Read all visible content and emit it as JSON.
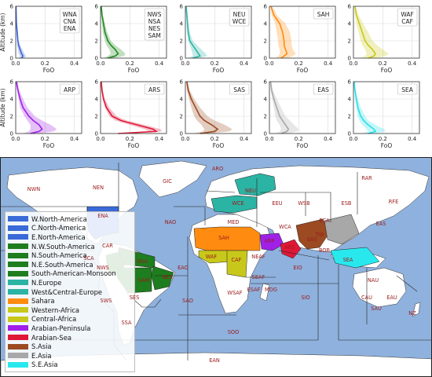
{
  "chart_data": [
    {
      "type": "area",
      "legend": [
        "WNA",
        "CNA",
        "ENA"
      ],
      "color": "#3a63d8",
      "xlabel": "FoO",
      "ylabel": "Altitude (km)",
      "xlim": [
        0,
        0.45
      ],
      "ylim": [
        0,
        6
      ],
      "xticks": [
        "0.0",
        "0.2",
        "0.4"
      ],
      "yticks": [
        "0",
        "2",
        "4",
        "6"
      ],
      "series": {
        "altitude": [
          0,
          0.25,
          0.5,
          1,
          1.5,
          2,
          3,
          4,
          5,
          6
        ],
        "mean": [
          0.04,
          0.05,
          0.04,
          0.03,
          0.02,
          0.015,
          0.01,
          0.005,
          0.003,
          0.002
        ],
        "lower": [
          0.02,
          0.03,
          0.02,
          0.015,
          0.01,
          0.008,
          0.005,
          0.002,
          0.001,
          0.001
        ],
        "upper": [
          0.06,
          0.07,
          0.06,
          0.045,
          0.03,
          0.02,
          0.015,
          0.008,
          0.005,
          0.003
        ]
      }
    },
    {
      "type": "area",
      "legend": [
        "NWS",
        "NSA",
        "NES",
        "SAM"
      ],
      "color": "#1f8a1f",
      "xlabel": "FoO",
      "ylabel": "",
      "xlim": [
        0,
        0.45
      ],
      "ylim": [
        0,
        6
      ],
      "xticks": [
        "0.0",
        "0.2",
        "0.4"
      ],
      "yticks": [
        "0",
        "2",
        "4",
        "6"
      ],
      "series": {
        "altitude": [
          0,
          0.25,
          0.5,
          1,
          1.5,
          2,
          3,
          4,
          5,
          6
        ],
        "mean": [
          0.05,
          0.1,
          0.12,
          0.1,
          0.07,
          0.05,
          0.03,
          0.02,
          0.01,
          0.005
        ],
        "lower": [
          0.02,
          0.05,
          0.07,
          0.06,
          0.04,
          0.03,
          0.015,
          0.01,
          0.005,
          0.002
        ],
        "upper": [
          0.09,
          0.16,
          0.17,
          0.14,
          0.1,
          0.07,
          0.045,
          0.03,
          0.015,
          0.008
        ]
      }
    },
    {
      "type": "area",
      "legend": [
        "NEU",
        "WCE"
      ],
      "color": "#2bb5a5",
      "xlabel": "FoO",
      "ylabel": "",
      "xlim": [
        0,
        0.45
      ],
      "ylim": [
        0,
        6
      ],
      "xticks": [
        "0.0",
        "0.2",
        "0.4"
      ],
      "yticks": [
        "0",
        "2",
        "4",
        "6"
      ],
      "series": {
        "altitude": [
          0,
          0.25,
          0.5,
          1,
          1.5,
          2,
          3,
          4,
          5,
          6
        ],
        "mean": [
          0.05,
          0.1,
          0.09,
          0.07,
          0.05,
          0.03,
          0.02,
          0.015,
          0.01,
          0.005
        ],
        "lower": [
          0.02,
          0.05,
          0.05,
          0.04,
          0.03,
          0.02,
          0.01,
          0.008,
          0.005,
          0.002
        ],
        "upper": [
          0.09,
          0.15,
          0.14,
          0.11,
          0.08,
          0.05,
          0.03,
          0.02,
          0.015,
          0.008
        ]
      }
    },
    {
      "type": "area",
      "legend": [
        "SAH"
      ],
      "color": "#ff8c10",
      "xlabel": "FoO",
      "ylabel": "",
      "xlim": [
        0,
        0.45
      ],
      "ylim": [
        0,
        6
      ],
      "xticks": [
        "0.0",
        "0.2",
        "0.4"
      ],
      "yticks": [
        "0",
        "2",
        "4",
        "6"
      ],
      "series": {
        "altitude": [
          0,
          0.25,
          0.5,
          1,
          1.5,
          2,
          3,
          4,
          5,
          6
        ],
        "mean": [
          0.08,
          0.1,
          0.12,
          0.11,
          0.1,
          0.1,
          0.09,
          0.07,
          0.03,
          0.01
        ],
        "lower": [
          0.04,
          0.06,
          0.07,
          0.07,
          0.06,
          0.06,
          0.05,
          0.04,
          0.015,
          0.005
        ],
        "upper": [
          0.13,
          0.16,
          0.18,
          0.16,
          0.15,
          0.15,
          0.14,
          0.11,
          0.05,
          0.02
        ]
      }
    },
    {
      "type": "area",
      "legend": [
        "WAF",
        "CAF"
      ],
      "color": "#c8c81a",
      "xlabel": "FoO",
      "ylabel": "",
      "xlim": [
        0,
        0.45
      ],
      "ylim": [
        0,
        6
      ],
      "xticks": [
        "0.0",
        "0.2",
        "0.4"
      ],
      "yticks": [
        "0",
        "2",
        "4",
        "6"
      ],
      "series": {
        "altitude": [
          0,
          0.25,
          0.5,
          1,
          1.5,
          2,
          3,
          4,
          5,
          6
        ],
        "mean": [
          0.1,
          0.14,
          0.15,
          0.13,
          0.1,
          0.08,
          0.06,
          0.04,
          0.02,
          0.01
        ],
        "lower": [
          0.05,
          0.08,
          0.09,
          0.08,
          0.06,
          0.05,
          0.035,
          0.02,
          0.01,
          0.005
        ],
        "upper": [
          0.16,
          0.22,
          0.24,
          0.2,
          0.16,
          0.13,
          0.1,
          0.065,
          0.035,
          0.015
        ]
      }
    },
    {
      "type": "area",
      "legend": [
        "ARP"
      ],
      "color": "#a020e8",
      "xlabel": "FoO",
      "ylabel": "Altitude (km)",
      "xlim": [
        0,
        0.45
      ],
      "ylim": [
        0,
        6
      ],
      "xticks": [
        "0.0",
        "0.2",
        "0.4"
      ],
      "yticks": [
        "0",
        "2",
        "4",
        "6"
      ],
      "series": {
        "altitude": [
          0,
          0.25,
          0.5,
          1,
          1.5,
          2,
          3,
          4,
          5,
          6
        ],
        "mean": [
          0.1,
          0.16,
          0.18,
          0.16,
          0.12,
          0.09,
          0.05,
          0.03,
          0.015,
          0.005
        ],
        "lower": [
          0.05,
          0.09,
          0.1,
          0.1,
          0.08,
          0.06,
          0.03,
          0.02,
          0.01,
          0.003
        ],
        "upper": [
          0.16,
          0.26,
          0.28,
          0.24,
          0.18,
          0.13,
          0.08,
          0.05,
          0.025,
          0.01
        ]
      }
    },
    {
      "type": "area",
      "legend": [
        "ARS"
      ],
      "color": "#e01838",
      "xlabel": "FoO",
      "ylabel": "",
      "xlim": [
        0,
        0.45
      ],
      "ylim": [
        0,
        6
      ],
      "xticks": [
        "0.0",
        "0.2",
        "0.4"
      ],
      "yticks": [
        "0",
        "2",
        "4",
        "6"
      ],
      "series": {
        "altitude": [
          0,
          0.25,
          0.5,
          1,
          1.5,
          2,
          3,
          4,
          5,
          6
        ],
        "mean": [
          0.12,
          0.38,
          0.36,
          0.25,
          0.14,
          0.08,
          0.04,
          0.02,
          0.01,
          0.005
        ],
        "lower": [
          0.1,
          0.33,
          0.3,
          0.2,
          0.1,
          0.06,
          0.03,
          0.015,
          0.005,
          0.002
        ],
        "upper": [
          0.15,
          0.42,
          0.41,
          0.3,
          0.18,
          0.11,
          0.06,
          0.03,
          0.015,
          0.008
        ]
      }
    },
    {
      "type": "area",
      "legend": [
        "SAS"
      ],
      "color": "#9b4a22",
      "xlabel": "FoO",
      "ylabel": "",
      "xlim": [
        0,
        0.45
      ],
      "ylim": [
        0,
        6
      ],
      "xticks": [
        "0.0",
        "0.2",
        "0.4"
      ],
      "yticks": [
        "0",
        "2",
        "4",
        "6"
      ],
      "series": {
        "altitude": [
          0,
          0.25,
          0.5,
          1,
          1.5,
          2,
          3,
          4,
          5,
          6
        ],
        "mean": [
          0.1,
          0.2,
          0.22,
          0.18,
          0.13,
          0.1,
          0.07,
          0.04,
          0.02,
          0.01
        ],
        "lower": [
          0.05,
          0.12,
          0.13,
          0.11,
          0.08,
          0.06,
          0.04,
          0.025,
          0.01,
          0.005
        ],
        "upper": [
          0.17,
          0.3,
          0.32,
          0.27,
          0.2,
          0.15,
          0.1,
          0.06,
          0.03,
          0.015
        ]
      }
    },
    {
      "type": "area",
      "legend": [
        "EAS"
      ],
      "color": "#a8a8a8",
      "xlabel": "FoO",
      "ylabel": "",
      "xlim": [
        0,
        0.45
      ],
      "ylim": [
        0,
        6
      ],
      "xticks": [
        "0.0",
        "0.2",
        "0.4"
      ],
      "yticks": [
        "0",
        "2",
        "4",
        "6"
      ],
      "series": {
        "altitude": [
          0,
          0.25,
          0.5,
          1,
          1.5,
          2,
          3,
          4,
          5,
          6
        ],
        "mean": [
          0.08,
          0.12,
          0.13,
          0.11,
          0.09,
          0.07,
          0.05,
          0.03,
          0.015,
          0.008
        ],
        "lower": [
          0.04,
          0.07,
          0.08,
          0.07,
          0.05,
          0.04,
          0.03,
          0.02,
          0.008,
          0.004
        ],
        "upper": [
          0.13,
          0.19,
          0.2,
          0.17,
          0.14,
          0.11,
          0.08,
          0.05,
          0.025,
          0.012
        ]
      }
    },
    {
      "type": "area",
      "legend": [
        "SEA"
      ],
      "color": "#28e0e8",
      "xlabel": "FoO",
      "ylabel": "",
      "xlim": [
        0,
        0.45
      ],
      "ylim": [
        0,
        6
      ],
      "xticks": [
        "0.0",
        "0.2",
        "0.4"
      ],
      "yticks": [
        "0",
        "2",
        "4",
        "6"
      ],
      "series": {
        "altitude": [
          0,
          0.25,
          0.5,
          1,
          1.5,
          2,
          3,
          4,
          5,
          6
        ],
        "mean": [
          0.1,
          0.15,
          0.14,
          0.1,
          0.07,
          0.05,
          0.03,
          0.02,
          0.01,
          0.005
        ],
        "lower": [
          0.06,
          0.1,
          0.09,
          0.06,
          0.04,
          0.03,
          0.02,
          0.01,
          0.005,
          0.002
        ],
        "upper": [
          0.15,
          0.22,
          0.21,
          0.15,
          0.1,
          0.08,
          0.05,
          0.03,
          0.015,
          0.008
        ]
      }
    }
  ],
  "map": {
    "ocean_color": "#8fb1dd",
    "land_color": "#ffffff",
    "legend": [
      {
        "label": "W.North-America",
        "color": "#3a6ad8"
      },
      {
        "label": "C.North-America",
        "color": "#3a6ad8"
      },
      {
        "label": "E.North-America",
        "color": "#3a6ad8"
      },
      {
        "label": "N.W.South-America",
        "color": "#1e7d1e"
      },
      {
        "label": "N.South-America",
        "color": "#1e7d1e"
      },
      {
        "label": "N.E.South-America",
        "color": "#1e7d1e"
      },
      {
        "label": "South-American-Monsoon",
        "color": "#1e7d1e"
      },
      {
        "label": "N.Europe",
        "color": "#2bb3a3"
      },
      {
        "label": "West&Central-Europe",
        "color": "#2bb3a3"
      },
      {
        "label": "Sahara",
        "color": "#ff8c10"
      },
      {
        "label": "Western-Africa",
        "color": "#c8c81a"
      },
      {
        "label": "Central-Africa",
        "color": "#c8c81a"
      },
      {
        "label": "Arabian-Peninsula",
        "color": "#a020e8"
      },
      {
        "label": "Arabian-Sea",
        "color": "#e01838"
      },
      {
        "label": "S.Asia",
        "color": "#9b4a22"
      },
      {
        "label": "E.Asia",
        "color": "#a8a8a8"
      },
      {
        "label": "S.E.Asia",
        "color": "#28e8ee"
      }
    ],
    "region_labels": [
      {
        "id": "aro",
        "text": "ARO"
      },
      {
        "id": "nwn",
        "text": "NWN"
      },
      {
        "id": "nen",
        "text": "NEN"
      },
      {
        "id": "gic",
        "text": "GIC"
      },
      {
        "id": "rar",
        "text": "RAR"
      },
      {
        "id": "neu",
        "text": "NEU"
      },
      {
        "id": "wce",
        "text": "WCE"
      },
      {
        "id": "eeu",
        "text": "EEU"
      },
      {
        "id": "wsb",
        "text": "WSB"
      },
      {
        "id": "esb",
        "text": "ESB"
      },
      {
        "id": "rfe",
        "text": "RFE"
      },
      {
        "id": "ena",
        "text": "ENA"
      },
      {
        "id": "nao",
        "text": "NAO"
      },
      {
        "id": "med",
        "text": "MED"
      },
      {
        "id": "eca",
        "text": "ECA"
      },
      {
        "id": "wca",
        "text": "WCA"
      },
      {
        "id": "eas",
        "text": "EAS"
      },
      {
        "id": "tib",
        "text": "TIB"
      },
      {
        "id": "car",
        "text": "CAR"
      },
      {
        "id": "sah",
        "text": "SAH"
      },
      {
        "id": "arp",
        "text": "ARP"
      },
      {
        "id": "sas",
        "text": "SAS"
      },
      {
        "id": "scar",
        "text": "SCA"
      },
      {
        "id": "waf",
        "text": "WAF"
      },
      {
        "id": "caf",
        "text": "CAF"
      },
      {
        "id": "neaf",
        "text": "NEAF"
      },
      {
        "id": "ars",
        "text": "ARS"
      },
      {
        "id": "bob",
        "text": "BOB"
      },
      {
        "id": "sea",
        "text": "SEA"
      },
      {
        "id": "nws",
        "text": "NWS"
      },
      {
        "id": "nsa",
        "text": "NSA"
      },
      {
        "id": "eao",
        "text": "EAO"
      },
      {
        "id": "seaf",
        "text": "SEAF"
      },
      {
        "id": "eio",
        "text": "EIO"
      },
      {
        "id": "sam",
        "text": "SAM"
      },
      {
        "id": "nes",
        "text": "NES"
      },
      {
        "id": "nau",
        "text": "NAU"
      },
      {
        "id": "wsaf",
        "text": "WSAF"
      },
      {
        "id": "esaf",
        "text": "ESAF"
      },
      {
        "id": "mdg",
        "text": "MDG"
      },
      {
        "id": "cau",
        "text": "CAU"
      },
      {
        "id": "eau",
        "text": "EAU"
      },
      {
        "id": "sws",
        "text": "SWS"
      },
      {
        "id": "ses",
        "text": "SES"
      },
      {
        "id": "sao",
        "text": "SAO"
      },
      {
        "id": "sio",
        "text": "SIO"
      },
      {
        "id": "sau",
        "text": "SAU"
      },
      {
        "id": "nzz",
        "text": "NZ"
      },
      {
        "id": "ssa",
        "text": "SSA"
      },
      {
        "id": "soo",
        "text": "SOO"
      },
      {
        "id": "ean",
        "text": "EAN"
      }
    ]
  }
}
